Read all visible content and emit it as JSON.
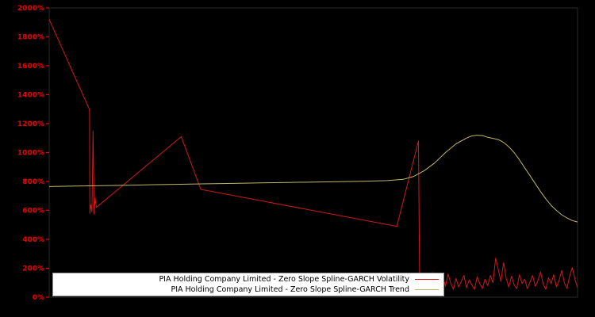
{
  "figure": {
    "background": "#000000",
    "plot_border_color": "#2a2a2a"
  },
  "axis": {
    "tick_color": "#ee0000",
    "ytick_labels": [
      "0%",
      "200%",
      "400%",
      "600%",
      "800%",
      "1000%",
      "1200%",
      "1400%",
      "1600%",
      "1800%",
      "2000%"
    ],
    "ytick_values": [
      0,
      200,
      400,
      600,
      800,
      1000,
      1200,
      1400,
      1600,
      1800,
      2000
    ]
  },
  "legend": {
    "entries": [
      {
        "label": "PIA Holding Company Limited - Zero Slope Spline-GARCH Volatility",
        "color": "#d01a1a"
      },
      {
        "label": "PIA Holding Company Limited - Zero Slope Spline-GARCH Trend",
        "color": "#bdb76b"
      }
    ]
  },
  "chart_data": {
    "type": "line",
    "title": "",
    "xlabel": "",
    "ylabel": "",
    "xlim": [
      0,
      1
    ],
    "ylim": [
      0,
      2000
    ],
    "grid": false,
    "legend_position": "lower center",
    "series": [
      {
        "name": "PIA Holding Company Limited - Zero Slope Spline-GARCH Volatility",
        "color": "#d01a1a",
        "points": [
          [
            0.0,
            1920
          ],
          [
            0.076,
            1300
          ],
          [
            0.0765,
            1280
          ],
          [
            0.077,
            580
          ],
          [
            0.079,
            640
          ],
          [
            0.081,
            590
          ],
          [
            0.083,
            1150
          ],
          [
            0.085,
            575
          ],
          [
            0.087,
            690
          ],
          [
            0.089,
            620
          ],
          [
            0.25,
            1110
          ],
          [
            0.287,
            745
          ],
          [
            0.658,
            490
          ],
          [
            0.699,
            1080
          ],
          [
            0.701,
            130
          ],
          [
            0.705,
            60
          ],
          [
            0.71,
            150
          ],
          [
            0.715,
            80
          ],
          [
            0.72,
            55
          ],
          [
            0.725,
            170
          ],
          [
            0.73,
            90
          ],
          [
            0.735,
            120
          ],
          [
            0.74,
            60
          ],
          [
            0.745,
            140
          ],
          [
            0.75,
            75
          ],
          [
            0.755,
            160
          ],
          [
            0.76,
            95
          ],
          [
            0.765,
            55
          ],
          [
            0.77,
            130
          ],
          [
            0.775,
            70
          ],
          [
            0.78,
            110
          ],
          [
            0.785,
            150
          ],
          [
            0.79,
            65
          ],
          [
            0.795,
            120
          ],
          [
            0.8,
            85
          ],
          [
            0.805,
            55
          ],
          [
            0.81,
            140
          ],
          [
            0.815,
            95
          ],
          [
            0.82,
            60
          ],
          [
            0.825,
            125
          ],
          [
            0.83,
            80
          ],
          [
            0.835,
            150
          ],
          [
            0.84,
            100
          ],
          [
            0.845,
            270
          ],
          [
            0.85,
            190
          ],
          [
            0.855,
            110
          ],
          [
            0.86,
            240
          ],
          [
            0.865,
            130
          ],
          [
            0.87,
            70
          ],
          [
            0.875,
            145
          ],
          [
            0.88,
            85
          ],
          [
            0.885,
            60
          ],
          [
            0.89,
            155
          ],
          [
            0.895,
            95
          ],
          [
            0.9,
            125
          ],
          [
            0.905,
            60
          ],
          [
            0.91,
            105
          ],
          [
            0.915,
            150
          ],
          [
            0.92,
            75
          ],
          [
            0.925,
            115
          ],
          [
            0.93,
            175
          ],
          [
            0.935,
            90
          ],
          [
            0.94,
            55
          ],
          [
            0.945,
            135
          ],
          [
            0.95,
            95
          ],
          [
            0.955,
            155
          ],
          [
            0.96,
            70
          ],
          [
            0.965,
            115
          ],
          [
            0.97,
            185
          ],
          [
            0.975,
            100
          ],
          [
            0.98,
            60
          ],
          [
            0.985,
            145
          ],
          [
            0.99,
            205
          ],
          [
            0.995,
            125
          ],
          [
            1.0,
            65
          ]
        ]
      },
      {
        "name": "PIA Holding Company Limited - Zero Slope Spline-GARCH Trend",
        "color": "#bdb76b",
        "points": [
          [
            0.0,
            765
          ],
          [
            0.05,
            768
          ],
          [
            0.1,
            771
          ],
          [
            0.15,
            774
          ],
          [
            0.2,
            778
          ],
          [
            0.25,
            781
          ],
          [
            0.3,
            784
          ],
          [
            0.35,
            787
          ],
          [
            0.4,
            790
          ],
          [
            0.45,
            793
          ],
          [
            0.5,
            796
          ],
          [
            0.55,
            799
          ],
          [
            0.6,
            802
          ],
          [
            0.64,
            806
          ],
          [
            0.67,
            815
          ],
          [
            0.69,
            835
          ],
          [
            0.71,
            875
          ],
          [
            0.73,
            930
          ],
          [
            0.75,
            1000
          ],
          [
            0.77,
            1060
          ],
          [
            0.79,
            1100
          ],
          [
            0.8,
            1115
          ],
          [
            0.81,
            1120
          ],
          [
            0.82,
            1118
          ],
          [
            0.83,
            1105
          ],
          [
            0.84,
            1098
          ],
          [
            0.85,
            1090
          ],
          [
            0.86,
            1070
          ],
          [
            0.87,
            1040
          ],
          [
            0.88,
            1000
          ],
          [
            0.89,
            950
          ],
          [
            0.9,
            895
          ],
          [
            0.91,
            840
          ],
          [
            0.92,
            785
          ],
          [
            0.93,
            730
          ],
          [
            0.94,
            680
          ],
          [
            0.95,
            635
          ],
          [
            0.96,
            600
          ],
          [
            0.97,
            570
          ],
          [
            0.98,
            548
          ],
          [
            0.99,
            530
          ],
          [
            1.0,
            520
          ]
        ]
      }
    ]
  }
}
